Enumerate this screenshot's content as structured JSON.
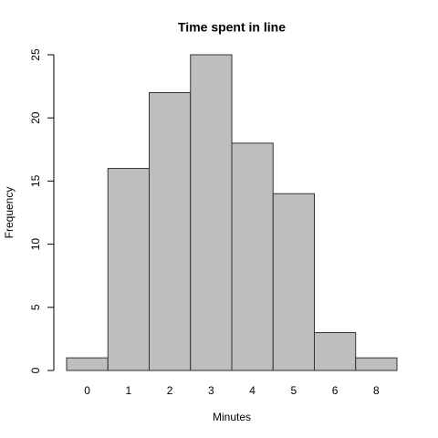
{
  "chart_data": {
    "type": "bar",
    "title": "Time spent in line",
    "xlabel": "Minutes",
    "ylabel": "Frequency",
    "categories": [
      "0",
      "1",
      "2",
      "3",
      "4",
      "5",
      "6",
      "8"
    ],
    "values": [
      1,
      16,
      22,
      25,
      18,
      14,
      3,
      1
    ],
    "color": "#bebebe",
    "ylim": [
      0,
      25
    ],
    "yticks": [
      0,
      5,
      10,
      15,
      20,
      25
    ]
  }
}
